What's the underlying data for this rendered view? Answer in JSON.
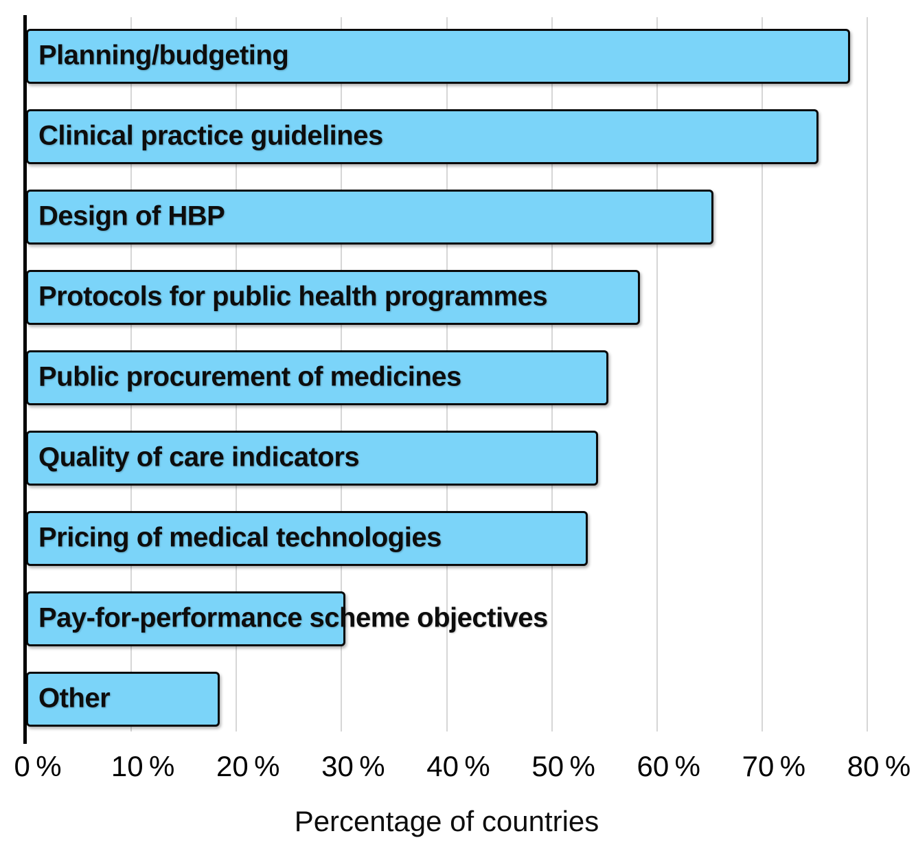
{
  "chart_data": {
    "type": "bar",
    "orientation": "horizontal",
    "title": "",
    "xlabel": "Percentage of countries",
    "ylabel": "",
    "xlim": [
      0,
      80
    ],
    "grid": "vertical",
    "legend": "none",
    "categories": [
      "Planning/budgeting",
      "Clinical practice guidelines",
      "Design of HBP",
      "Protocols for public health programmes",
      "Public procurement of medicines",
      "Quality of care indicators",
      "Pricing of medical technologies",
      "Pay-for-performance scheme objectives",
      "Other"
    ],
    "values": [
      78,
      75,
      65,
      58,
      55,
      54,
      53,
      30,
      18
    ],
    "x_ticks": [
      {
        "value": 0,
        "label": "0 %"
      },
      {
        "value": 10,
        "label": "10 %"
      },
      {
        "value": 20,
        "label": "20 %"
      },
      {
        "value": 30,
        "label": "30 %"
      },
      {
        "value": 40,
        "label": "40 %"
      },
      {
        "value": 50,
        "label": "50 %"
      },
      {
        "value": 60,
        "label": "60 %"
      },
      {
        "value": 70,
        "label": "70 %"
      },
      {
        "value": 80,
        "label": "80 %"
      }
    ],
    "colors": {
      "bar_fill": "#7BD4F9",
      "bar_border": "#0a0a0a",
      "gridline": "#D6D6D6",
      "axis_line": "#000000",
      "text": "#0d0d0d"
    }
  }
}
